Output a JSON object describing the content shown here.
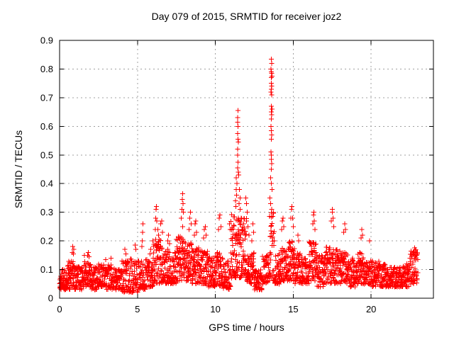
{
  "chart_data": {
    "type": "scatter",
    "title": "Day 079 of 2015, SRMTID for receiver joz2",
    "xlabel": "GPS time / hours",
    "ylabel": "SRMTID / TECUs",
    "xlim": [
      0,
      24
    ],
    "ylim": [
      0,
      0.9
    ],
    "xtick_values": [
      0,
      5,
      10,
      15,
      20
    ],
    "xtick_labels": [
      "0",
      "5",
      "10",
      "15",
      "20"
    ],
    "ytick_values": [
      0,
      0.1,
      0.2,
      0.3,
      0.4,
      0.5,
      0.6,
      0.7,
      0.8,
      0.9
    ],
    "ytick_labels": [
      "0",
      "0.1",
      "0.2",
      "0.3",
      "0.4",
      "0.5",
      "0.6",
      "0.7",
      "0.8",
      "0.9"
    ],
    "grid": true,
    "legend": "none",
    "marker": "plus",
    "marker_size_px": 7,
    "marker_color": "#ff0000",
    "grid_color": "#a0a0a0",
    "border_color": "#000000",
    "background_color": "#ffffff",
    "prng_seed": 42,
    "noise_bands": [
      [
        0.0,
        0.5,
        0.03,
        0.1,
        55
      ],
      [
        0.5,
        1.0,
        0.03,
        0.13,
        58
      ],
      [
        1.0,
        1.5,
        0.03,
        0.11,
        55
      ],
      [
        1.5,
        2.0,
        0.04,
        0.13,
        55
      ],
      [
        2.0,
        2.5,
        0.03,
        0.11,
        55
      ],
      [
        2.5,
        3.0,
        0.04,
        0.12,
        55
      ],
      [
        3.0,
        3.5,
        0.03,
        0.12,
        52
      ],
      [
        3.5,
        4.0,
        0.03,
        0.1,
        52
      ],
      [
        4.0,
        4.5,
        0.02,
        0.13,
        52
      ],
      [
        4.5,
        5.0,
        0.02,
        0.14,
        50
      ],
      [
        5.0,
        5.5,
        0.03,
        0.13,
        52
      ],
      [
        5.5,
        6.0,
        0.04,
        0.14,
        55
      ],
      [
        6.0,
        6.5,
        0.05,
        0.21,
        60
      ],
      [
        6.5,
        7.0,
        0.05,
        0.18,
        58
      ],
      [
        7.0,
        7.5,
        0.05,
        0.16,
        55
      ],
      [
        7.5,
        8.0,
        0.06,
        0.22,
        60
      ],
      [
        8.0,
        8.5,
        0.06,
        0.2,
        60
      ],
      [
        8.5,
        9.0,
        0.05,
        0.18,
        58
      ],
      [
        9.0,
        9.5,
        0.05,
        0.17,
        55
      ],
      [
        9.5,
        10.0,
        0.04,
        0.15,
        55
      ],
      [
        10.0,
        10.5,
        0.04,
        0.16,
        55
      ],
      [
        10.5,
        11.0,
        0.03,
        0.13,
        52
      ],
      [
        11.0,
        11.5,
        0.07,
        0.3,
        65
      ],
      [
        11.5,
        12.0,
        0.07,
        0.28,
        65
      ],
      [
        12.0,
        12.5,
        0.05,
        0.16,
        55
      ],
      [
        12.5,
        13.0,
        0.03,
        0.1,
        52
      ],
      [
        13.0,
        13.45,
        0.05,
        0.15,
        48
      ],
      [
        13.45,
        13.8,
        0.06,
        0.3,
        42
      ],
      [
        13.8,
        14.2,
        0.05,
        0.16,
        45
      ],
      [
        14.2,
        14.7,
        0.06,
        0.18,
        55
      ],
      [
        14.7,
        15.1,
        0.06,
        0.2,
        48
      ],
      [
        15.1,
        15.6,
        0.05,
        0.16,
        54
      ],
      [
        15.6,
        16.0,
        0.05,
        0.15,
        45
      ],
      [
        16.0,
        16.5,
        0.06,
        0.2,
        56
      ],
      [
        16.5,
        17.0,
        0.04,
        0.15,
        54
      ],
      [
        17.0,
        17.5,
        0.05,
        0.18,
        55
      ],
      [
        17.5,
        18.0,
        0.05,
        0.17,
        55
      ],
      [
        18.0,
        18.5,
        0.05,
        0.16,
        54
      ],
      [
        18.5,
        19.0,
        0.04,
        0.14,
        53
      ],
      [
        19.0,
        19.5,
        0.05,
        0.16,
        54
      ],
      [
        19.5,
        20.0,
        0.05,
        0.14,
        53
      ],
      [
        20.0,
        20.5,
        0.04,
        0.13,
        52
      ],
      [
        20.5,
        21.0,
        0.04,
        0.12,
        52
      ],
      [
        21.0,
        21.5,
        0.04,
        0.11,
        52
      ],
      [
        21.5,
        22.0,
        0.04,
        0.11,
        52
      ],
      [
        22.0,
        22.5,
        0.04,
        0.12,
        53
      ],
      [
        22.5,
        23.0,
        0.05,
        0.17,
        55
      ]
    ],
    "peak_points": [
      [
        0.82,
        0.16
      ],
      [
        0.85,
        0.18
      ],
      [
        0.88,
        0.155
      ],
      [
        0.9,
        0.17
      ],
      [
        1.6,
        0.15
      ],
      [
        1.8,
        0.15
      ],
      [
        1.85,
        0.16
      ],
      [
        1.9,
        0.145
      ],
      [
        2.95,
        0.135
      ],
      [
        3.3,
        0.14
      ],
      [
        4.2,
        0.17
      ],
      [
        4.25,
        0.155
      ],
      [
        4.85,
        0.185
      ],
      [
        4.9,
        0.17
      ],
      [
        5.28,
        0.18
      ],
      [
        5.3,
        0.2
      ],
      [
        5.33,
        0.23
      ],
      [
        5.35,
        0.26
      ],
      [
        5.8,
        0.155
      ],
      [
        5.85,
        0.17
      ],
      [
        6.15,
        0.24
      ],
      [
        6.18,
        0.28
      ],
      [
        6.2,
        0.31
      ],
      [
        6.22,
        0.32
      ],
      [
        6.25,
        0.27
      ],
      [
        6.3,
        0.24
      ],
      [
        6.35,
        0.22
      ],
      [
        6.5,
        0.26
      ],
      [
        6.55,
        0.27
      ],
      [
        6.6,
        0.23
      ],
      [
        6.95,
        0.2
      ],
      [
        7.0,
        0.22
      ],
      [
        7.05,
        0.19
      ],
      [
        7.82,
        0.28
      ],
      [
        7.85,
        0.31
      ],
      [
        7.88,
        0.345
      ],
      [
        7.9,
        0.365
      ],
      [
        7.92,
        0.33
      ],
      [
        7.95,
        0.3
      ],
      [
        7.9,
        0.25
      ],
      [
        8.3,
        0.24
      ],
      [
        8.35,
        0.28
      ],
      [
        8.4,
        0.3
      ],
      [
        8.45,
        0.26
      ],
      [
        8.65,
        0.22
      ],
      [
        8.7,
        0.26
      ],
      [
        8.75,
        0.27
      ],
      [
        8.8,
        0.23
      ],
      [
        9.25,
        0.21
      ],
      [
        9.3,
        0.24
      ],
      [
        9.35,
        0.25
      ],
      [
        9.4,
        0.22
      ],
      [
        10.2,
        0.24
      ],
      [
        10.25,
        0.28
      ],
      [
        10.3,
        0.29
      ],
      [
        10.35,
        0.25
      ],
      [
        10.9,
        0.26
      ],
      [
        10.95,
        0.24
      ],
      [
        11.35,
        0.42
      ],
      [
        11.38,
        0.4
      ],
      [
        11.33,
        0.38
      ],
      [
        11.36,
        0.36
      ],
      [
        11.3,
        0.34
      ],
      [
        11.32,
        0.32
      ],
      [
        11.45,
        0.655
      ],
      [
        11.42,
        0.63
      ],
      [
        11.44,
        0.615
      ],
      [
        11.46,
        0.6
      ],
      [
        11.43,
        0.575
      ],
      [
        11.45,
        0.555
      ],
      [
        11.47,
        0.545
      ],
      [
        11.44,
        0.52
      ],
      [
        11.42,
        0.5
      ],
      [
        11.46,
        0.475
      ],
      [
        11.44,
        0.455
      ],
      [
        11.48,
        0.44
      ],
      [
        11.5,
        0.43
      ],
      [
        11.55,
        0.38
      ],
      [
        11.58,
        0.35
      ],
      [
        11.52,
        0.33
      ],
      [
        11.6,
        0.31
      ],
      [
        11.65,
        0.28
      ],
      [
        11.62,
        0.26
      ],
      [
        11.7,
        0.24
      ],
      [
        11.95,
        0.35
      ],
      [
        12.0,
        0.33
      ],
      [
        12.05,
        0.3
      ],
      [
        12.0,
        0.27
      ],
      [
        12.1,
        0.25
      ],
      [
        12.15,
        0.22
      ],
      [
        12.4,
        0.26
      ],
      [
        12.45,
        0.23
      ],
      [
        12.35,
        0.2
      ],
      [
        13.6,
        0.835
      ],
      [
        13.62,
        0.82
      ],
      [
        13.58,
        0.8
      ],
      [
        13.6,
        0.79
      ],
      [
        13.61,
        0.785
      ],
      [
        13.63,
        0.775
      ],
      [
        13.59,
        0.77
      ],
      [
        13.6,
        0.75
      ],
      [
        13.62,
        0.74
      ],
      [
        13.6,
        0.73
      ],
      [
        13.58,
        0.72
      ],
      [
        13.61,
        0.71
      ],
      [
        13.6,
        0.67
      ],
      [
        13.63,
        0.66
      ],
      [
        13.59,
        0.65
      ],
      [
        13.61,
        0.64
      ],
      [
        13.6,
        0.625
      ],
      [
        13.58,
        0.6
      ],
      [
        13.6,
        0.585
      ],
      [
        13.62,
        0.57
      ],
      [
        13.6,
        0.555
      ],
      [
        13.57,
        0.51
      ],
      [
        13.6,
        0.5
      ],
      [
        13.59,
        0.485
      ],
      [
        13.61,
        0.47
      ],
      [
        13.6,
        0.45
      ],
      [
        13.55,
        0.42
      ],
      [
        13.6,
        0.4
      ],
      [
        13.65,
        0.38
      ],
      [
        13.5,
        0.35
      ],
      [
        13.55,
        0.33
      ],
      [
        13.62,
        0.31
      ],
      [
        14.3,
        0.27
      ],
      [
        14.35,
        0.28
      ],
      [
        14.4,
        0.25
      ],
      [
        14.25,
        0.24
      ],
      [
        14.85,
        0.28
      ],
      [
        14.9,
        0.31
      ],
      [
        14.92,
        0.32
      ],
      [
        14.95,
        0.28
      ],
      [
        15.0,
        0.25
      ],
      [
        15.3,
        0.22
      ],
      [
        15.35,
        0.2
      ],
      [
        16.25,
        0.26
      ],
      [
        16.3,
        0.29
      ],
      [
        16.32,
        0.3
      ],
      [
        16.35,
        0.27
      ],
      [
        16.4,
        0.24
      ],
      [
        17.45,
        0.27
      ],
      [
        17.5,
        0.3
      ],
      [
        17.52,
        0.31
      ],
      [
        17.55,
        0.28
      ],
      [
        17.6,
        0.25
      ],
      [
        18.25,
        0.23
      ],
      [
        18.3,
        0.26
      ],
      [
        18.35,
        0.24
      ],
      [
        19.35,
        0.21
      ],
      [
        19.4,
        0.24
      ],
      [
        19.45,
        0.22
      ],
      [
        19.9,
        0.2
      ],
      [
        22.7,
        0.155
      ],
      [
        22.75,
        0.16
      ],
      [
        22.8,
        0.175
      ],
      [
        22.85,
        0.15
      ]
    ]
  }
}
